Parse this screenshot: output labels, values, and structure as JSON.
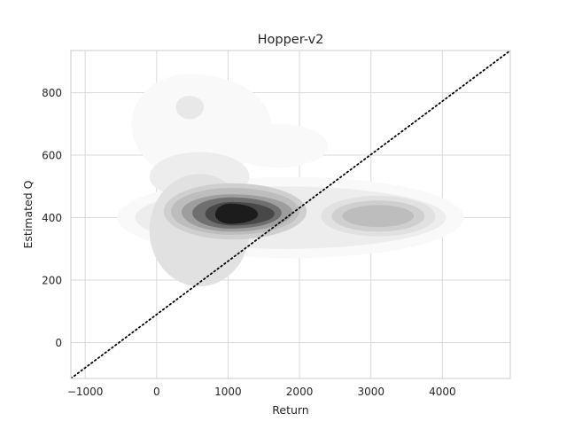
{
  "chart_data": {
    "type": "kde-contour",
    "title": "Hopper-v2",
    "xlabel": "Return",
    "ylabel": "Estimated Q",
    "xlim": [
      -1200,
      4950
    ],
    "ylim": [
      -115,
      935
    ],
    "xticks": [
      -1000,
      0,
      1000,
      2000,
      3000,
      4000
    ],
    "xtick_labels": [
      "−1000",
      "0",
      "1000",
      "2000",
      "3000",
      "4000"
    ],
    "yticks": [
      0,
      200,
      400,
      600,
      800
    ],
    "ytick_labels": [
      "0",
      "200",
      "400",
      "600",
      "800"
    ],
    "grid": true,
    "reference_line": {
      "style": "dotted",
      "color": "#000000",
      "equation": "y = x",
      "points": [
        [
          -1200,
          -115
        ],
        [
          4950,
          935
        ]
      ]
    },
    "density_levels": [
      {
        "level": 1,
        "color": "#f9f9f9",
        "bands": [
          {
            "x": [
              -550,
              4300
            ],
            "y": [
              270,
              530
            ],
            "x_center": 1900,
            "y_center": 400
          },
          {
            "x": [
              -350,
              1600
            ],
            "y": [
              530,
              860
            ],
            "x_center": 450,
            "y_center": 700
          },
          {
            "x": [
              1000,
              2400
            ],
            "y": [
              560,
              700
            ],
            "x_center": 1700,
            "y_center": 630
          }
        ]
      },
      {
        "level": 2,
        "color": "#ededed",
        "bands": [
          {
            "x": [
              -300,
              4050
            ],
            "y": [
              300,
              500
            ],
            "x_center": 1800,
            "y_center": 400
          },
          {
            "x": [
              -100,
              1300
            ],
            "y": [
              460,
              610
            ],
            "x_center": 600,
            "y_center": 530
          }
        ]
      },
      {
        "level": 3,
        "color": "#e1e1e1",
        "bands": [
          {
            "x": [
              -100,
              1300
            ],
            "y": [
              180,
              540
            ],
            "x_center": 600,
            "y_center": 360
          },
          {
            "x": [
              2300,
              3900
            ],
            "y": [
              340,
              470
            ],
            "x_center": 3100,
            "y_center": 405
          }
        ]
      },
      {
        "level": 4,
        "color": "#cfcfcf",
        "bands": [
          {
            "x": [
              100,
              2100
            ],
            "y": [
              330,
              510
            ],
            "x_center": 1050,
            "y_center": 420
          },
          {
            "x": [
              2450,
              3750
            ],
            "y": [
              355,
              455
            ],
            "x_center": 3100,
            "y_center": 405
          }
        ]
      },
      {
        "level": 5,
        "color": "#bdbdbd",
        "bands": [
          {
            "x": [
              200,
              2000
            ],
            "y": [
              345,
              495
            ],
            "x_center": 1050,
            "y_center": 420
          },
          {
            "x": [
              2600,
              3600
            ],
            "y": [
              370,
              440
            ],
            "x_center": 3100,
            "y_center": 405
          }
        ]
      },
      {
        "level": 6,
        "color": "#9e9e9e",
        "bands": [
          {
            "x": [
              350,
              1900
            ],
            "y": [
              355,
              475
            ],
            "x_center": 1050,
            "y_center": 418
          }
        ]
      },
      {
        "level": 7,
        "color": "#6f6f6f",
        "bands": [
          {
            "x": [
              500,
              1750
            ],
            "y": [
              365,
              465
            ],
            "x_center": 1050,
            "y_center": 415
          }
        ]
      },
      {
        "level": 8,
        "color": "#484848",
        "bands": [
          {
            "x": [
              680,
              1650
            ],
            "y": [
              375,
              450
            ],
            "x_center": 1060,
            "y_center": 412
          }
        ]
      },
      {
        "level": 9,
        "color": "#1c1c1c",
        "bands": [
          {
            "x": [
              820,
              1420
            ],
            "y": [
              380,
              445
            ],
            "x_center": 1030,
            "y_center": 410
          }
        ]
      },
      {
        "level": 10,
        "color": "#e8e8e8",
        "bands": [
          {
            "x": [
              270,
              660
            ],
            "y": [
              715,
              790
            ],
            "x_center": 460,
            "y_center": 755
          }
        ]
      }
    ]
  }
}
